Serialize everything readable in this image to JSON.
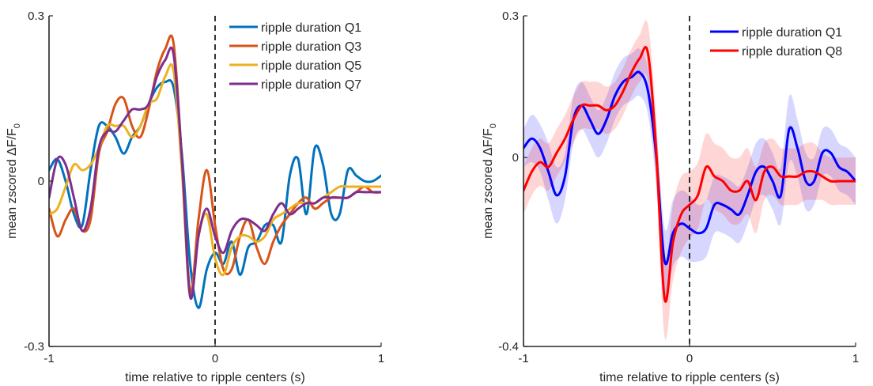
{
  "chart_data": [
    {
      "type": "line",
      "xlabel": "time relative to ripple centers (s)",
      "ylabel_prefix": "mean zscored ",
      "ylabel_math": "ΔF/F",
      "ylabel_sub": "0",
      "xlim": [
        -1,
        1
      ],
      "ylim": [
        -0.3,
        0.3
      ],
      "xtick_labels": [
        "-1",
        "0",
        "1"
      ],
      "ytick_labels": [
        "-0.3",
        "0",
        "0.3"
      ],
      "vertical_marker_x": 0,
      "legend_position": "top-right",
      "x": [
        -1.0,
        -0.95,
        -0.9,
        -0.85,
        -0.8,
        -0.75,
        -0.7,
        -0.65,
        -0.6,
        -0.55,
        -0.5,
        -0.45,
        -0.4,
        -0.35,
        -0.3,
        -0.25,
        -0.2,
        -0.15,
        -0.1,
        -0.05,
        0.0,
        0.05,
        0.1,
        0.15,
        0.2,
        0.25,
        0.3,
        0.35,
        0.4,
        0.45,
        0.5,
        0.55,
        0.6,
        0.65,
        0.7,
        0.75,
        0.8,
        0.85,
        0.9,
        0.95,
        1.0
      ],
      "series": [
        {
          "name": "ripple duration Q1",
          "color": "#0072BD",
          "values": [
            0.02,
            0.04,
            0.0,
            -0.06,
            -0.08,
            0.02,
            0.1,
            0.1,
            0.08,
            0.05,
            0.08,
            0.1,
            0.14,
            0.17,
            0.18,
            0.17,
            0.05,
            -0.15,
            -0.23,
            -0.16,
            -0.13,
            -0.15,
            -0.11,
            -0.17,
            -0.12,
            -0.11,
            -0.08,
            -0.08,
            -0.11,
            0.01,
            0.04,
            -0.06,
            0.06,
            0.03,
            -0.06,
            -0.06,
            0.02,
            0.01,
            0.0,
            0.0,
            0.01
          ]
        },
        {
          "name": "ripple duration Q3",
          "color": "#D95319",
          "values": [
            -0.05,
            -0.1,
            -0.07,
            -0.05,
            -0.09,
            -0.07,
            0.05,
            0.09,
            0.14,
            0.15,
            0.1,
            0.08,
            0.13,
            0.2,
            0.24,
            0.25,
            0.04,
            -0.2,
            -0.07,
            0.02,
            -0.08,
            -0.16,
            -0.16,
            -0.1,
            -0.07,
            -0.12,
            -0.15,
            -0.11,
            -0.08,
            -0.06,
            -0.04,
            -0.03,
            -0.05,
            -0.04,
            -0.03,
            -0.03,
            -0.03,
            -0.02,
            -0.01,
            -0.02,
            -0.02
          ]
        },
        {
          "name": "ripple duration Q5",
          "color": "#EDB120",
          "values": [
            -0.06,
            -0.05,
            -0.01,
            0.03,
            0.02,
            0.03,
            0.06,
            0.1,
            0.1,
            0.1,
            0.08,
            0.1,
            0.14,
            0.15,
            0.19,
            0.2,
            0.02,
            -0.21,
            -0.1,
            -0.06,
            -0.14,
            -0.17,
            -0.12,
            -0.1,
            -0.1,
            -0.11,
            -0.1,
            -0.07,
            -0.06,
            -0.05,
            -0.04,
            -0.04,
            -0.04,
            -0.03,
            -0.02,
            -0.01,
            -0.01,
            -0.01,
            -0.01,
            -0.01,
            -0.01
          ]
        },
        {
          "name": "ripple duration Q7",
          "color": "#7E2F8E",
          "values": [
            -0.03,
            0.04,
            0.03,
            -0.03,
            -0.09,
            -0.05,
            0.06,
            0.09,
            0.09,
            0.11,
            0.13,
            0.13,
            0.14,
            0.19,
            0.22,
            0.23,
            0.04,
            -0.21,
            -0.1,
            -0.05,
            -0.1,
            -0.13,
            -0.09,
            -0.07,
            -0.07,
            -0.08,
            -0.09,
            -0.06,
            -0.04,
            -0.06,
            -0.05,
            -0.04,
            -0.04,
            -0.03,
            -0.03,
            -0.03,
            -0.03,
            -0.02,
            -0.02,
            -0.02,
            -0.02
          ]
        }
      ]
    },
    {
      "type": "line",
      "xlabel": "time relative to ripple centers (s)",
      "ylabel_prefix": "mean zscored ",
      "ylabel_math": "ΔF/F",
      "ylabel_sub": "0",
      "xlim": [
        -1,
        1
      ],
      "ylim": [
        -0.4,
        0.3
      ],
      "xtick_labels": [
        "-1",
        "0",
        "1"
      ],
      "ytick_labels": [
        "-0.4",
        "0",
        "0.3"
      ],
      "vertical_marker_x": 0,
      "legend_position": "top-right",
      "shaded_error_band": true,
      "x": [
        -1.0,
        -0.95,
        -0.9,
        -0.85,
        -0.8,
        -0.75,
        -0.7,
        -0.65,
        -0.6,
        -0.55,
        -0.5,
        -0.45,
        -0.4,
        -0.35,
        -0.3,
        -0.25,
        -0.2,
        -0.15,
        -0.1,
        -0.05,
        0.0,
        0.05,
        0.1,
        0.15,
        0.2,
        0.25,
        0.3,
        0.35,
        0.4,
        0.45,
        0.5,
        0.55,
        0.6,
        0.65,
        0.7,
        0.75,
        0.8,
        0.85,
        0.9,
        0.95,
        1.0
      ],
      "series": [
        {
          "name": "ripple duration Q1",
          "color": "#0000FF",
          "values": [
            0.02,
            0.04,
            0.02,
            -0.03,
            -0.08,
            -0.04,
            0.08,
            0.11,
            0.08,
            0.05,
            0.08,
            0.13,
            0.16,
            0.17,
            0.18,
            0.14,
            0.0,
            -0.22,
            -0.16,
            -0.14,
            -0.15,
            -0.16,
            -0.15,
            -0.1,
            -0.1,
            -0.11,
            -0.12,
            -0.08,
            -0.03,
            -0.02,
            -0.05,
            -0.08,
            0.06,
            0.02,
            -0.05,
            -0.05,
            0.01,
            0.01,
            -0.02,
            -0.03,
            -0.05
          ],
          "error": [
            0.04,
            0.05,
            0.05,
            0.06,
            0.06,
            0.05,
            0.05,
            0.05,
            0.05,
            0.05,
            0.05,
            0.05,
            0.05,
            0.05,
            0.05,
            0.05,
            0.06,
            0.07,
            0.07,
            0.07,
            0.07,
            0.06,
            0.06,
            0.06,
            0.06,
            0.06,
            0.06,
            0.06,
            0.06,
            0.06,
            0.06,
            0.06,
            0.07,
            0.06,
            0.06,
            0.05,
            0.05,
            0.05,
            0.05,
            0.05,
            0.05
          ]
        },
        {
          "name": "ripple duration Q8",
          "color": "#FF0000",
          "values": [
            -0.07,
            -0.03,
            -0.01,
            -0.02,
            0.01,
            0.04,
            0.08,
            0.11,
            0.11,
            0.11,
            0.1,
            0.11,
            0.14,
            0.18,
            0.21,
            0.22,
            0.01,
            -0.3,
            -0.18,
            -0.12,
            -0.1,
            -0.08,
            -0.02,
            -0.04,
            -0.05,
            -0.07,
            -0.07,
            -0.05,
            -0.09,
            -0.03,
            -0.02,
            -0.04,
            -0.04,
            -0.04,
            -0.03,
            -0.03,
            -0.04,
            -0.05,
            -0.05,
            -0.05,
            -0.05
          ],
          "error": [
            0.05,
            0.05,
            0.05,
            0.05,
            0.05,
            0.05,
            0.05,
            0.05,
            0.05,
            0.05,
            0.05,
            0.05,
            0.05,
            0.05,
            0.05,
            0.06,
            0.07,
            0.08,
            0.08,
            0.08,
            0.07,
            0.07,
            0.07,
            0.07,
            0.07,
            0.07,
            0.07,
            0.07,
            0.07,
            0.06,
            0.06,
            0.06,
            0.06,
            0.06,
            0.06,
            0.06,
            0.05,
            0.05,
            0.05,
            0.05,
            0.05
          ]
        }
      ]
    }
  ]
}
